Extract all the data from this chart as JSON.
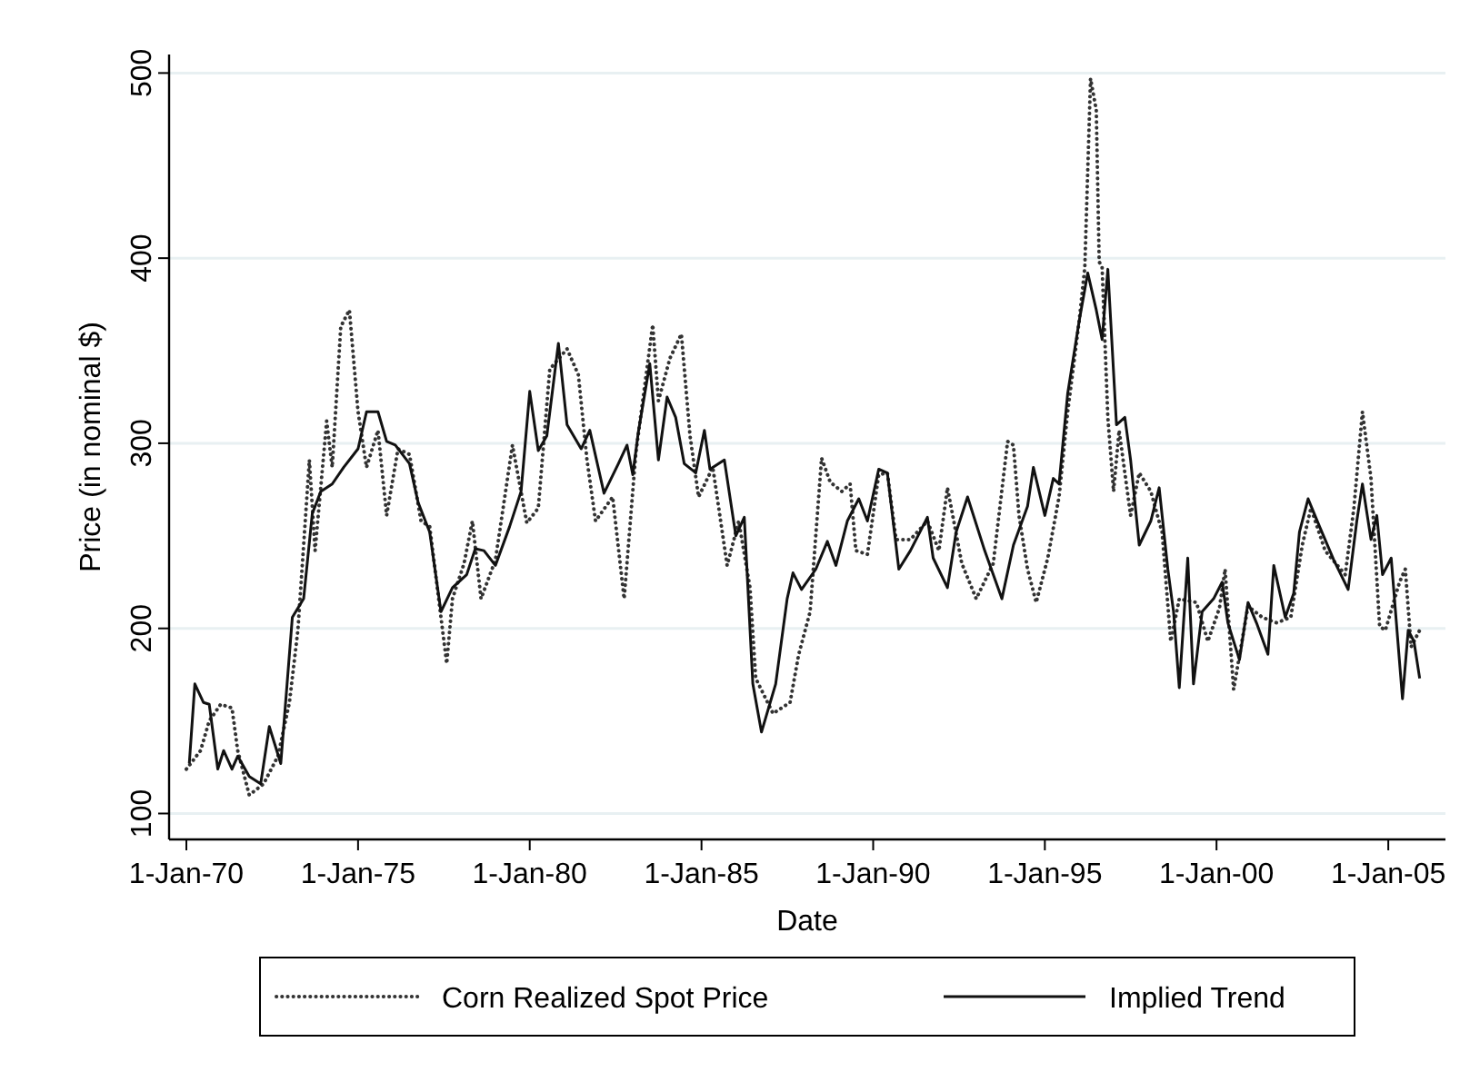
{
  "chart_data": {
    "type": "line",
    "xlabel": "Date",
    "ylabel": "Price (in nominal $)",
    "xlim": [
      "1969-07",
      "2006-09"
    ],
    "ylim": [
      86,
      510
    ],
    "xticks": [
      {
        "value": "1970-01-01",
        "label": "1-Jan-70"
      },
      {
        "value": "1975-01-01",
        "label": "1-Jan-75"
      },
      {
        "value": "1980-01-01",
        "label": "1-Jan-80"
      },
      {
        "value": "1985-01-01",
        "label": "1-Jan-85"
      },
      {
        "value": "1990-01-01",
        "label": "1-Jan-90"
      },
      {
        "value": "1995-01-01",
        "label": "1-Jan-95"
      },
      {
        "value": "2000-01-01",
        "label": "1-Jan-00"
      },
      {
        "value": "2005-01-01",
        "label": "1-Jan-05"
      }
    ],
    "yticks": [
      100,
      200,
      300,
      400,
      500
    ],
    "grid": "y",
    "legend": "bottom",
    "marker": "none",
    "series": [
      {
        "name": "Corn Realized Spot Price",
        "color": "#333333",
        "line_style": "dotted",
        "x": [
          "1970-01",
          "1970-06",
          "1970-09",
          "1971-01",
          "1971-05",
          "1971-07",
          "1971-11",
          "1972-04",
          "1972-09",
          "1973-01",
          "1973-04",
          "1973-08",
          "1973-10",
          "1974-02",
          "1974-04",
          "1974-07",
          "1974-10",
          "1975-01",
          "1975-04",
          "1975-08",
          "1975-11",
          "1976-03",
          "1976-07",
          "1976-11",
          "1977-02",
          "1977-08",
          "1977-10",
          "1978-02",
          "1978-05",
          "1978-08",
          "1979-01",
          "1979-07",
          "1979-12",
          "1980-04",
          "1980-08",
          "1981-02",
          "1981-06",
          "1981-09",
          "1981-12",
          "1982-06",
          "1982-10",
          "1983-02",
          "1983-08",
          "1983-10",
          "1984-02",
          "1984-06",
          "1984-09",
          "1984-12",
          "1985-05",
          "1985-10",
          "1986-02",
          "1986-06",
          "1986-08",
          "1987-02",
          "1987-08",
          "1987-11",
          "1988-03",
          "1988-07",
          "1988-10",
          "1989-02",
          "1989-05",
          "1989-07",
          "1989-11",
          "1990-03",
          "1990-06",
          "1990-09",
          "1991-02",
          "1991-08",
          "1991-12",
          "1992-03",
          "1992-08",
          "1993-01",
          "1993-07",
          "1993-12",
          "1994-02",
          "1994-04",
          "1994-07",
          "1994-10",
          "1995-02",
          "1995-06",
          "1995-09",
          "1996-01",
          "1996-03",
          "1996-05",
          "1996-07",
          "1996-08",
          "1996-09",
          "1996-11",
          "1997-01",
          "1997-03",
          "1997-07",
          "1997-10",
          "1998-02",
          "1998-06",
          "1998-09",
          "1998-12",
          "1999-06",
          "1999-10",
          "2000-02",
          "2000-04",
          "2000-07",
          "2000-12",
          "2001-05",
          "2001-10",
          "2002-03",
          "2002-07",
          "2002-10",
          "2003-03",
          "2003-10",
          "2004-01",
          "2004-04",
          "2004-07",
          "2004-10",
          "2004-12",
          "2005-05",
          "2005-07",
          "2005-09",
          "2005-12"
        ],
        "values": [
          124,
          134,
          150,
          159,
          157,
          134,
          110,
          116,
          131,
          160,
          199,
          291,
          242,
          312,
          287,
          363,
          372,
          317,
          287,
          307,
          261,
          297,
          294,
          258,
          255,
          181,
          216,
          235,
          258,
          216,
          237,
          299,
          257,
          265,
          340,
          351,
          337,
          291,
          258,
          271,
          216,
          294,
          364,
          323,
          346,
          359,
          304,
          271,
          287,
          234,
          258,
          222,
          173,
          154,
          160,
          186,
          209,
          292,
          279,
          274,
          278,
          242,
          240,
          283,
          284,
          248,
          248,
          258,
          242,
          276,
          235,
          216,
          235,
          301,
          299,
          261,
          232,
          214,
          238,
          271,
          317,
          366,
          395,
          497,
          480,
          398,
          395,
          314,
          274,
          307,
          261,
          284,
          274,
          252,
          193,
          216,
          214,
          193,
          211,
          232,
          167,
          212,
          206,
          203,
          206,
          245,
          265,
          242,
          229,
          265,
          317,
          281,
          201,
          199,
          225,
          232,
          190,
          199
        ]
      },
      {
        "name": "Implied Trend",
        "color": "#111111",
        "line_style": "solid",
        "x": [
          "1970-02",
          "1970-04",
          "1970-07",
          "1970-09",
          "1970-12",
          "1971-02",
          "1971-05",
          "1971-07",
          "1971-11",
          "1972-03",
          "1972-06",
          "1972-10",
          "1973-02",
          "1973-06",
          "1973-09",
          "1973-12",
          "1974-04",
          "1974-08",
          "1975-01",
          "1975-04",
          "1975-08",
          "1975-11",
          "1976-02",
          "1976-07",
          "1976-10",
          "1977-02",
          "1977-06",
          "1977-10",
          "1978-03",
          "1978-06",
          "1978-09",
          "1979-01",
          "1979-06",
          "1979-10",
          "1980-01",
          "1980-04",
          "1980-07",
          "1980-11",
          "1981-02",
          "1981-07",
          "1981-10",
          "1982-03",
          "1982-08",
          "1982-11",
          "1983-01",
          "1983-03",
          "1983-07",
          "1983-10",
          "1984-01",
          "1984-04",
          "1984-07",
          "1984-11",
          "1985-02",
          "1985-04",
          "1985-09",
          "1986-01",
          "1986-04",
          "1986-07",
          "1986-10",
          "1987-03",
          "1987-07",
          "1987-09",
          "1987-12",
          "1988-05",
          "1988-09",
          "1988-12",
          "1989-04",
          "1989-08",
          "1989-11",
          "1990-03",
          "1990-06",
          "1990-10",
          "1991-02",
          "1991-08",
          "1991-10",
          "1992-03",
          "1992-06",
          "1992-10",
          "1993-04",
          "1993-10",
          "1994-02",
          "1994-07",
          "1994-09",
          "1995-01",
          "1995-04",
          "1995-06",
          "1995-09",
          "1996-01",
          "1996-04",
          "1996-07",
          "1996-09",
          "1996-11",
          "1997-02",
          "1997-05",
          "1997-07",
          "1997-10",
          "1998-02",
          "1998-05",
          "1998-08",
          "1998-10",
          "1998-12",
          "1999-03",
          "1999-05",
          "1999-08",
          "1999-12",
          "2000-03",
          "2000-05",
          "2000-09",
          "2000-12",
          "2001-03",
          "2001-07",
          "2001-09",
          "2002-01",
          "2002-04",
          "2002-06",
          "2002-09",
          "2003-01",
          "2003-06",
          "2003-11",
          "2004-02",
          "2004-04",
          "2004-07",
          "2004-09",
          "2004-11",
          "2005-02",
          "2005-06",
          "2005-08",
          "2005-10",
          "2005-12"
        ],
        "values": [
          127,
          170,
          160,
          159,
          124,
          134,
          124,
          131,
          120,
          116,
          147,
          127,
          206,
          216,
          262,
          274,
          278,
          287,
          297,
          317,
          317,
          301,
          299,
          289,
          268,
          252,
          209,
          222,
          229,
          243,
          242,
          234,
          255,
          274,
          328,
          296,
          304,
          354,
          310,
          297,
          307,
          273,
          289,
          299,
          283,
          306,
          343,
          291,
          325,
          314,
          289,
          284,
          307,
          286,
          291,
          250,
          260,
          170,
          144,
          170,
          216,
          230,
          221,
          232,
          247,
          234,
          258,
          270,
          258,
          286,
          284,
          232,
          242,
          260,
          238,
          222,
          252,
          271,
          242,
          216,
          245,
          266,
          287,
          261,
          281,
          278,
          327,
          366,
          392,
          372,
          356,
          394,
          310,
          314,
          291,
          245,
          258,
          276,
          232,
          209,
          168,
          238,
          170,
          209,
          216,
          225,
          203,
          183,
          214,
          203,
          186,
          234,
          206,
          219,
          252,
          270,
          255,
          237,
          221,
          258,
          278,
          248,
          261,
          229,
          238,
          162,
          199,
          193,
          173
        ]
      }
    ]
  }
}
